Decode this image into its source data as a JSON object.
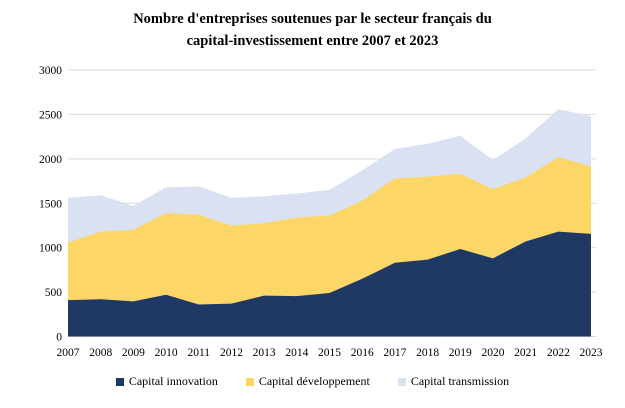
{
  "title_lines": [
    "Nombre d'entreprises soutenues par le secteur français du",
    "capital-investissement entre 2007 et 2023"
  ],
  "chart_data": {
    "type": "area",
    "stacked": true,
    "title": "Nombre d'entreprises soutenues par le secteur français du capital-investissement entre 2007 et 2023",
    "xlabel": "",
    "ylabel": "",
    "categories": [
      2007,
      2008,
      2009,
      2010,
      2011,
      2012,
      2013,
      2014,
      2015,
      2016,
      2017,
      2018,
      2019,
      2020,
      2021,
      2022,
      2023
    ],
    "series": [
      {
        "id": "capital-innovation",
        "name": "Capital innovation",
        "color": "#1F3864",
        "values": [
          410,
          420,
          395,
          470,
          360,
          370,
          460,
          455,
          490,
          650,
          830,
          865,
          985,
          880,
          1070,
          1180,
          1155
        ]
      },
      {
        "id": "capital-developpement",
        "name": "Capital développement",
        "color": "#FCD768",
        "values": [
          650,
          760,
          805,
          920,
          1010,
          880,
          815,
          885,
          870,
          880,
          950,
          935,
          845,
          780,
          720,
          840,
          760
        ]
      },
      {
        "id": "capital-transmission",
        "name": "Capital transmission",
        "color": "#D9E1F2",
        "values": [
          500,
          410,
          270,
          290,
          320,
          310,
          305,
          270,
          290,
          340,
          330,
          370,
          430,
          325,
          440,
          540,
          565
        ]
      }
    ],
    "totals": [
      1560,
      1590,
      1470,
      1680,
      1690,
      1560,
      1580,
      1610,
      1650,
      1870,
      2110,
      2170,
      2260,
      1985,
      2230,
      2560,
      2480
    ],
    "yticks": [
      0,
      500,
      1000,
      1500,
      2000,
      2500,
      3000
    ],
    "ylim": [
      0,
      3000
    ],
    "grid": true,
    "grid_color": "#D9D9D9",
    "legend_position": "bottom"
  }
}
